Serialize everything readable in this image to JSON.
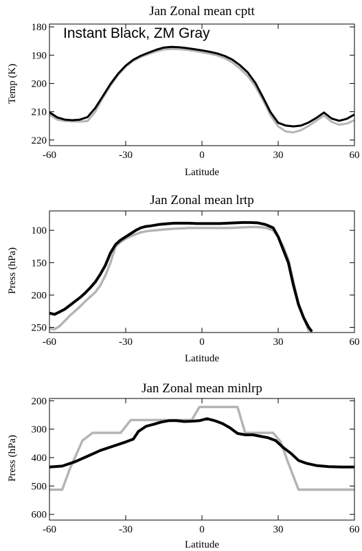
{
  "chart_data": [
    {
      "type": "line",
      "title": "Jan Zonal mean cptt",
      "xlabel": "Latitude",
      "ylabel": "Temp (K)",
      "xlim": [
        -60,
        60
      ],
      "ylim": [
        222,
        179
      ],
      "xticks": [
        -60,
        -30,
        0,
        30,
        60
      ],
      "yticks": [
        180,
        190,
        200,
        210,
        220
      ],
      "annotation": "Instant Black, ZM Gray",
      "series": [
        {
          "color": "#000000",
          "x": [
            -60,
            -57,
            -54,
            -51,
            -48,
            -45,
            -42,
            -39,
            -36,
            -33,
            -30,
            -27,
            -24,
            -21,
            -18,
            -15,
            -12,
            -9,
            -6,
            -3,
            0,
            3,
            6,
            9,
            12,
            15,
            18,
            21,
            24,
            27,
            30,
            33,
            36,
            39,
            42,
            45,
            48,
            51,
            54,
            57,
            60
          ],
          "y": [
            210.2,
            212,
            212.8,
            213,
            212.8,
            211.9,
            208.7,
            204.5,
            200.2,
            196.6,
            193.7,
            191.6,
            190.2,
            189.1,
            188.1,
            187.3,
            187.1,
            187.2,
            187.5,
            187.9,
            188.3,
            188.8,
            189.4,
            190.3,
            191.6,
            193.6,
            196.1,
            199.8,
            204.9,
            210.2,
            213.9,
            214.9,
            215.2,
            214.9,
            213.8,
            212.2,
            210.3,
            212.4,
            213.2,
            212.5,
            211
          ]
        },
        {
          "color": "#b4b4b4",
          "x": [
            -60,
            -57,
            -54,
            -51,
            -48,
            -45,
            -42,
            -39,
            -36,
            -33,
            -30,
            -27,
            -24,
            -21,
            -18,
            -15,
            -12,
            -9,
            -6,
            -3,
            0,
            3,
            6,
            9,
            12,
            15,
            18,
            21,
            24,
            27,
            30,
            33,
            36,
            39,
            42,
            45,
            48,
            51,
            54,
            57,
            60
          ],
          "y": [
            211,
            212.8,
            213.3,
            213.4,
            213.5,
            213.3,
            210,
            205.1,
            200.8,
            197,
            194.1,
            192,
            190.6,
            189.6,
            188.7,
            188,
            187.8,
            187.9,
            188.1,
            188.5,
            189,
            189.5,
            190.1,
            191.1,
            192.6,
            194.8,
            197.4,
            201,
            205.9,
            211.3,
            215.2,
            217,
            217.3,
            216.5,
            215,
            213.2,
            211.3,
            213.6,
            214.6,
            214.2,
            213
          ]
        }
      ]
    },
    {
      "type": "line",
      "title": "Jan Zonal mean lrtp",
      "xlabel": "Latitude",
      "ylabel": "Press (hPa)",
      "xlim": [
        -60,
        60
      ],
      "ylim": [
        258,
        70
      ],
      "xticks": [
        -60,
        -30,
        0,
        30,
        60
      ],
      "yticks": [
        100,
        150,
        200,
        250
      ],
      "series": [
        {
          "color": "#000000",
          "x": [
            -60,
            -58,
            -56,
            -54,
            -52,
            -50,
            -48,
            -46,
            -44,
            -42,
            -40,
            -38,
            -36,
            -34,
            -32,
            -30,
            -28,
            -26,
            -24,
            -22,
            -20,
            -17,
            -14,
            -11,
            -8,
            -5,
            -2,
            1,
            4,
            7,
            10,
            13,
            16,
            19,
            22,
            25,
            28,
            30,
            32,
            34,
            36,
            38,
            40,
            42,
            43
          ],
          "y": [
            228,
            230,
            226,
            222,
            216,
            210,
            204,
            197,
            189,
            180,
            168,
            154,
            135,
            122,
            115,
            110,
            105,
            100,
            96,
            94,
            93,
            91,
            90,
            89,
            89,
            89,
            89.5,
            89.5,
            89.5,
            89.5,
            89,
            88.5,
            88,
            88,
            88.5,
            91,
            96,
            110,
            130,
            150,
            185,
            215,
            235,
            250,
            255
          ]
        },
        {
          "color": "#b4b4b4",
          "x": [
            -60,
            -58,
            -56,
            -54,
            -52,
            -50,
            -48,
            -46,
            -44,
            -42,
            -40,
            -38,
            -36,
            -34,
            -32,
            -30,
            -28,
            -26,
            -24,
            -22,
            -20,
            -17,
            -14,
            -11,
            -8,
            -5,
            -2,
            1,
            4,
            7,
            10,
            13,
            16,
            19,
            22,
            25,
            28,
            30,
            32,
            34,
            36,
            38,
            40,
            42
          ],
          "y": [
            252,
            253,
            248,
            240,
            232,
            225,
            218,
            210,
            203,
            196,
            185,
            170,
            150,
            125,
            118,
            113,
            109,
            106,
            103,
            101.5,
            100.5,
            99.5,
            98.5,
            97.5,
            97,
            96.5,
            96.5,
            96.5,
            96.5,
            96.5,
            96.5,
            96,
            95.5,
            95,
            95,
            96,
            100,
            110,
            125,
            145,
            180,
            213,
            235,
            255
          ]
        }
      ]
    },
    {
      "type": "line",
      "title": "Jan Zonal mean minlrp",
      "xlabel": "Latitude",
      "ylabel": "Press (hPa)",
      "xlim": [
        -60,
        60
      ],
      "ylim": [
        620,
        192
      ],
      "xticks": [
        -60,
        -30,
        0,
        30,
        60
      ],
      "yticks": [
        200,
        300,
        400,
        500,
        600
      ],
      "series": [
        {
          "color": "#000000",
          "x": [
            -60,
            -55,
            -50,
            -45,
            -40,
            -35,
            -30,
            -27,
            -25,
            -22,
            -19,
            -16,
            -13,
            -10,
            -7,
            -4,
            -1,
            2,
            5,
            8,
            11,
            14,
            17,
            20,
            23,
            26,
            29,
            32,
            35,
            38,
            41,
            45,
            50,
            55,
            60
          ],
          "y": [
            433,
            430,
            415,
            395,
            375,
            360,
            345,
            335,
            308,
            290,
            283,
            275,
            270,
            270,
            273,
            272,
            270,
            263,
            270,
            280,
            295,
            315,
            320,
            320,
            325,
            330,
            340,
            365,
            385,
            410,
            420,
            428,
            432,
            433,
            433
          ]
        },
        {
          "color": "#b4b4b4",
          "x": [
            -60,
            -55,
            -52,
            -47,
            -43,
            -38,
            -35,
            -32,
            -28,
            -25,
            -20,
            -15,
            -10,
            -7,
            -4,
            -1,
            2,
            5,
            8,
            11,
            14,
            17,
            20,
            25,
            28,
            31,
            34,
            38,
            45,
            52,
            60
          ],
          "y": [
            513,
            513,
            440,
            340,
            313,
            313,
            313,
            313,
            268,
            268,
            268,
            268,
            268,
            268,
            268,
            222,
            222,
            222,
            222,
            222,
            222,
            313,
            313,
            313,
            313,
            345,
            420,
            513,
            513,
            513,
            513
          ]
        }
      ]
    }
  ]
}
